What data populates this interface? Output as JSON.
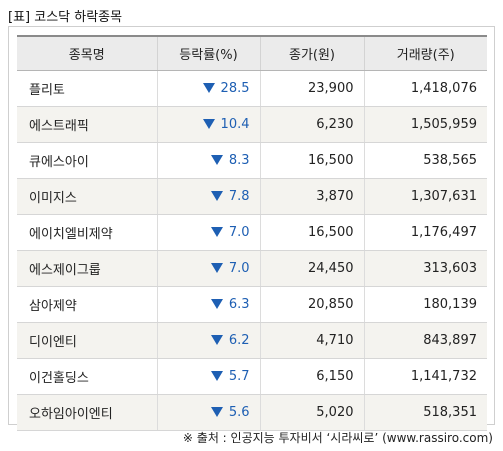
{
  "title": "[표] 코스닥 하락종목",
  "columns": [
    "종목명",
    "등락률(%)",
    "종가(원)",
    "거래량(주)"
  ],
  "rows": [
    {
      "name": "플리토",
      "rate": "28.5",
      "price": "23,900",
      "volume": "1,418,076"
    },
    {
      "name": "에스트래픽",
      "rate": "10.4",
      "price": "6,230",
      "volume": "1,505,959"
    },
    {
      "name": "큐에스아이",
      "rate": "8.3",
      "price": "16,500",
      "volume": "538,565"
    },
    {
      "name": "이미지스",
      "rate": "7.8",
      "price": "3,870",
      "volume": "1,307,631"
    },
    {
      "name": "에이치엘비제약",
      "rate": "7.0",
      "price": "16,500",
      "volume": "1,176,497"
    },
    {
      "name": "에스제이그룹",
      "rate": "7.0",
      "price": "24,450",
      "volume": "313,603"
    },
    {
      "name": "삼아제약",
      "rate": "6.3",
      "price": "20,850",
      "volume": "180,139"
    },
    {
      "name": "디이엔티",
      "rate": "6.2",
      "price": "4,710",
      "volume": "843,897"
    },
    {
      "name": "이건홀딩스",
      "rate": "5.7",
      "price": "6,150",
      "volume": "1,141,732"
    },
    {
      "name": "오하임아이엔티",
      "rate": "5.6",
      "price": "5,020",
      "volume": "518,351"
    }
  ],
  "source": "※ 출처 : 인공지능 투자비서 ‘시라씨로’ (www.rassiro.com)",
  "colors": {
    "down": "#1e5fb3",
    "header_bg": "#ebebeb",
    "alt_row_bg": "#f4f3ef"
  },
  "icons": {
    "rate_marker": "down-triangle-icon"
  }
}
